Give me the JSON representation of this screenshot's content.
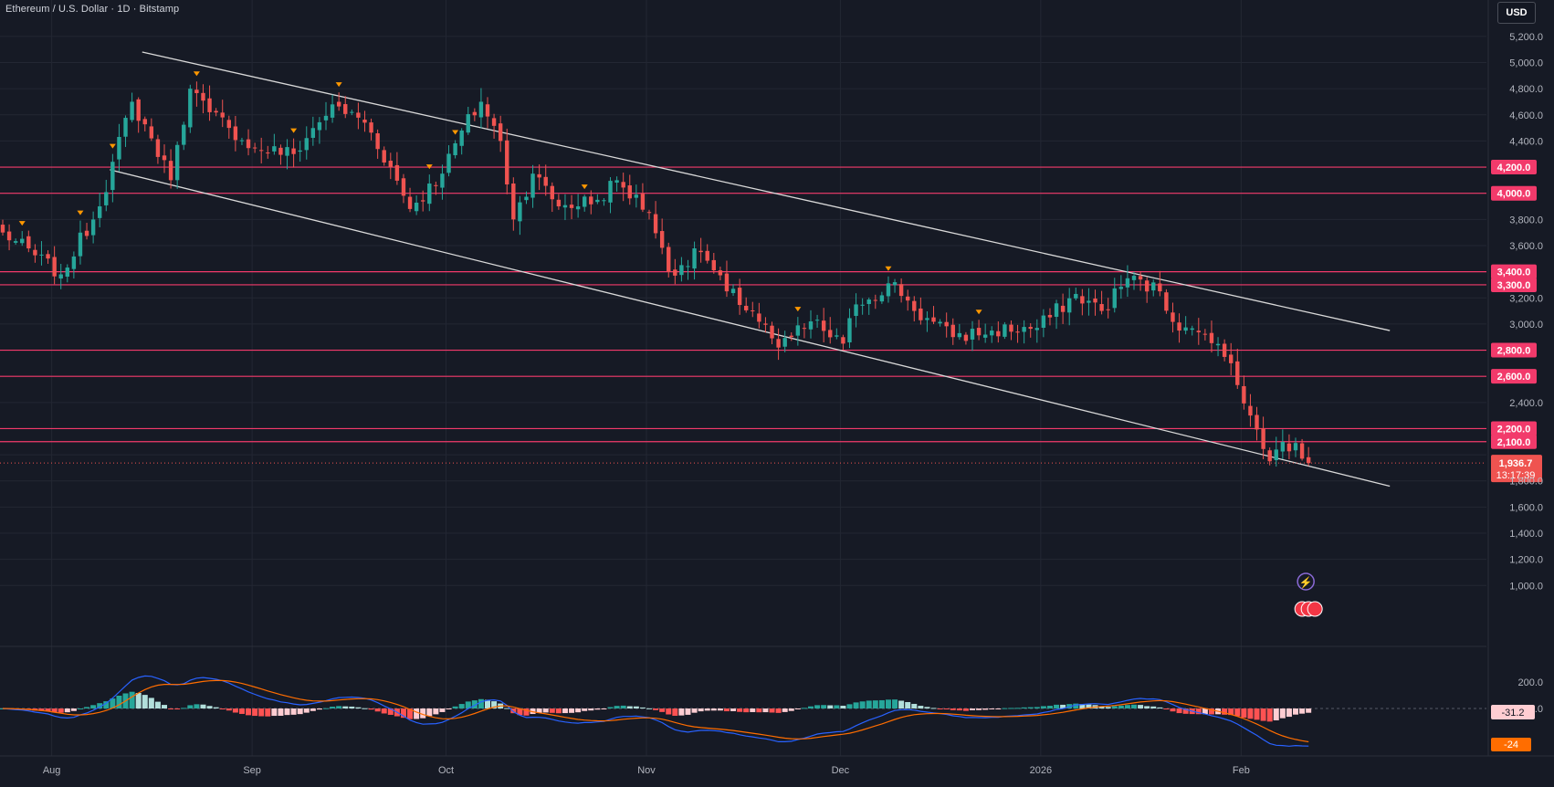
{
  "header": {
    "title": "Ethereum / U.S. Dollar · 1D · Bitstamp",
    "currency": "USD"
  },
  "colors": {
    "background": "#161a25",
    "up": "#26a69a",
    "down": "#ef5350",
    "level_line": "#f23a6b",
    "trendline": "#d9d9d9",
    "macd_line": "#2962ff",
    "signal_line": "#ff6d00",
    "marker": "#ff9800"
  },
  "chart_data": [
    {
      "type": "candlestick",
      "symbol": "Ethereum / U.S. Dollar",
      "interval": "1D",
      "exchange": "Bitstamp",
      "y_axis": {
        "min": 800,
        "max": 5300,
        "ticks": [
          1000,
          1200,
          1400,
          1600,
          1800,
          2000,
          2200,
          2400,
          2600,
          2800,
          3000,
          3200,
          3400,
          3600,
          3800,
          4000,
          4200,
          4400,
          4600,
          4800,
          5000,
          5200
        ],
        "tick_labels": [
          "1,000.0",
          "1,200.0",
          "1,400.0",
          "1,600.0",
          "1,800.0",
          "2,000.0",
          "2,200.0",
          "2,400.0",
          "2,600.0",
          "2,800.0",
          "3,000.0",
          "3,200.0",
          "3,400.0",
          "3,600.0",
          "3,800.0",
          "4,000.0",
          "4,200.0",
          "4,400.0",
          "4,600.0",
          "4,800.0",
          "5,000.0",
          "5,200.0"
        ]
      },
      "x_axis": {
        "labels": [
          "Aug",
          "Sep",
          "Oct",
          "Nov",
          "Dec",
          "2026",
          "Feb"
        ],
        "label_dates": [
          "2025-08-01",
          "2025-09-01",
          "2025-10-01",
          "2025-11-01",
          "2025-12-01",
          "2026-01-01",
          "2026-02-01"
        ],
        "first_bar_date": "2025-07-24",
        "last_bar_date": "2026-02-11"
      },
      "anchors": [
        [
          "2025-07-24",
          3700
        ],
        [
          "2025-08-02",
          3380
        ],
        [
          "2025-08-08",
          3900
        ],
        [
          "2025-08-13",
          4700
        ],
        [
          "2025-08-16",
          4420
        ],
        [
          "2025-08-19",
          4100
        ],
        [
          "2025-08-22",
          4800
        ],
        [
          "2025-08-25",
          4620
        ],
        [
          "2025-08-28",
          4500
        ],
        [
          "2025-09-01",
          4350
        ],
        [
          "2025-09-07",
          4300
        ],
        [
          "2025-09-13",
          4680
        ],
        [
          "2025-09-18",
          4540
        ],
        [
          "2025-09-22",
          4200
        ],
        [
          "2025-09-25",
          3880
        ],
        [
          "2025-09-30",
          4150
        ],
        [
          "2025-10-03",
          4480
        ],
        [
          "2025-10-06",
          4700
        ],
        [
          "2025-10-09",
          4400
        ],
        [
          "2025-10-11",
          3800
        ],
        [
          "2025-10-14",
          4150
        ],
        [
          "2025-10-18",
          3900
        ],
        [
          "2025-10-24",
          3950
        ],
        [
          "2025-10-27",
          4100
        ],
        [
          "2025-11-01",
          3850
        ],
        [
          "2025-11-04",
          3400
        ],
        [
          "2025-11-09",
          3550
        ],
        [
          "2025-11-13",
          3250
        ],
        [
          "2025-11-17",
          3100
        ],
        [
          "2025-11-21",
          2820
        ],
        [
          "2025-11-26",
          3020
        ],
        [
          "2025-12-01",
          2850
        ],
        [
          "2025-12-03",
          3150
        ],
        [
          "2025-12-09",
          3320
        ],
        [
          "2025-12-12",
          3100
        ],
        [
          "2025-12-18",
          2900
        ],
        [
          "2025-12-24",
          2950
        ],
        [
          "2025-12-31",
          2970
        ],
        [
          "2026-01-06",
          3230
        ],
        [
          "2026-01-10",
          3100
        ],
        [
          "2026-01-14",
          3350
        ],
        [
          "2026-01-19",
          3250
        ],
        [
          "2026-01-22",
          2950
        ],
        [
          "2026-01-26",
          2920
        ],
        [
          "2026-01-30",
          2700
        ],
        [
          "2026-02-02",
          2300
        ],
        [
          "2026-02-05",
          1950
        ],
        [
          "2026-02-06",
          2040
        ],
        [
          "2026-02-09",
          2090
        ],
        [
          "2026-02-11",
          1936.7
        ]
      ],
      "last_price": 1936.7,
      "last_price_label": "1,936.7",
      "countdown": "13:17:39",
      "horizontal_levels": [
        4200,
        4000,
        3400,
        3300,
        2800,
        2600,
        2200,
        2100
      ],
      "horizontal_level_labels": [
        "4,200.0",
        "4,000.0",
        "3,400.0",
        "3,300.0",
        "2,800.0",
        "2,600.0",
        "2,200.0",
        "2,100.0"
      ],
      "trendlines": [
        {
          "from": [
            "2025-08-15",
            5080
          ],
          "to": [
            "2026-02-24",
            2950
          ]
        },
        {
          "from": [
            "2025-08-10",
            4180
          ],
          "to": [
            "2026-02-24",
            1760
          ]
        }
      ],
      "markers": [
        "2025-07-27",
        "2025-08-05",
        "2025-08-10",
        "2025-08-23",
        "2025-09-07",
        "2025-09-14",
        "2025-09-28",
        "2025-10-02",
        "2025-10-22",
        "2025-11-24",
        "2025-12-08",
        "2025-12-22"
      ]
    },
    {
      "type": "macd",
      "y_ticks": [
        200,
        0
      ],
      "y_tick_labels": [
        "200.0",
        "0.0"
      ],
      "last_hist_label": "-31.2",
      "last_signal_label": "-24",
      "approx_range": [
        -250,
        250
      ]
    }
  ]
}
